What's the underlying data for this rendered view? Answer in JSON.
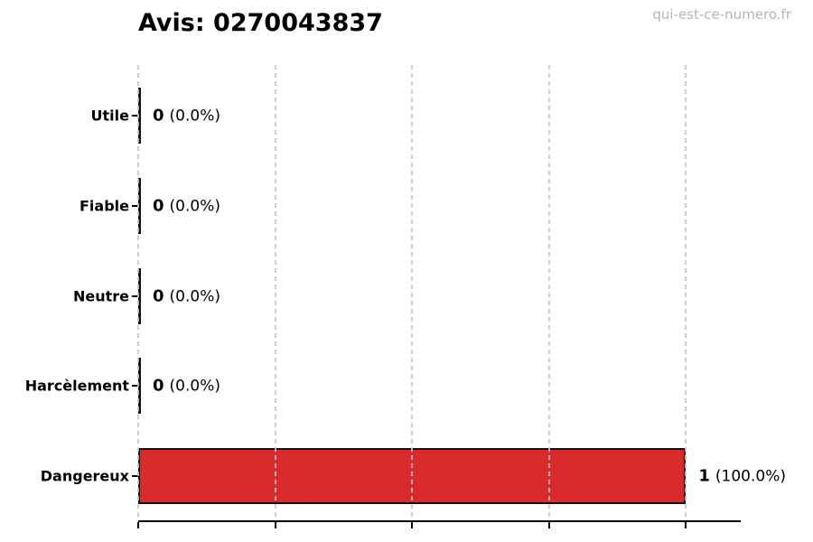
{
  "title": "Avis: 0270043837",
  "watermark": "qui-est-ce-numero.fr",
  "colors": {
    "bar_fill": "#d92b2b",
    "bar_edge": "#141414",
    "grid": "#c8c8c8",
    "watermark_text": "#b5b5b5",
    "text": "#000000"
  },
  "chart_data": {
    "type": "bar",
    "orientation": "horizontal",
    "title": "Avis: 0270043837",
    "categories": [
      "Utile",
      "Fiable",
      "Neutre",
      "Harcèlement",
      "Dangereux"
    ],
    "values": [
      0,
      0,
      0,
      0,
      1
    ],
    "labels": [
      {
        "count": "0",
        "percent": "(0.0%)"
      },
      {
        "count": "0",
        "percent": "(0.0%)"
      },
      {
        "count": "0",
        "percent": "(0.0%)"
      },
      {
        "count": "0",
        "percent": "(0.0%)"
      },
      {
        "count": "1",
        "percent": "(100.0%)"
      }
    ],
    "xlim": [
      0,
      1.1
    ],
    "xticks": [
      0,
      0.25,
      0.5,
      0.75,
      1.0
    ],
    "grid": true,
    "legend": false,
    "xlabel": "",
    "ylabel": ""
  }
}
